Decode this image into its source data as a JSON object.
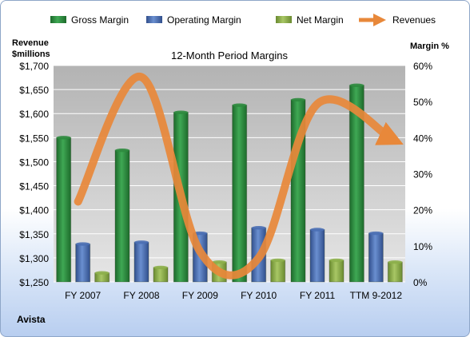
{
  "chart_data": {
    "type": "bar",
    "title": "12-Month Period Margins",
    "company": "Avista",
    "left_axis_title_line1": "Revenue",
    "left_axis_title_line2": "$millions",
    "right_axis_title": "Margin %",
    "categories": [
      "FY 2007",
      "FY 2008",
      "FY 2009",
      "FY 2010",
      "FY 2011",
      "TTM 9-2012"
    ],
    "left_ticks": [
      "$1,250",
      "$1,300",
      "$1,350",
      "$1,400",
      "$1,450",
      "$1,500",
      "$1,550",
      "$1,600",
      "$1,650",
      "$1,700"
    ],
    "right_ticks": [
      "0%",
      "10%",
      "20%",
      "30%",
      "40%",
      "50%",
      "60%"
    ],
    "left_ylim": [
      1250,
      1700
    ],
    "right_ylim": [
      0,
      60
    ],
    "grid": true,
    "legend_position": "top",
    "series": [
      {
        "name": "Gross Margin",
        "kind": "bar",
        "axis": "right",
        "color": "#2e8b3e",
        "values": [
          40,
          36.5,
          47,
          49,
          50.5,
          54.5
        ]
      },
      {
        "name": "Operating Margin",
        "kind": "bar",
        "axis": "right",
        "color": "#4a6fb5",
        "values": [
          10.5,
          11,
          13.5,
          15,
          14.5,
          13.5
        ]
      },
      {
        "name": "Net Margin",
        "kind": "bar",
        "axis": "right",
        "color": "#8db04a",
        "values": [
          2.5,
          4,
          5.5,
          6,
          6,
          5.5
        ]
      },
      {
        "name": "Revenues",
        "kind": "line",
        "axis": "left",
        "color": "#e8883a",
        "values": [
          1417,
          1676,
          1313,
          1300,
          1620,
          1547
        ]
      }
    ]
  }
}
